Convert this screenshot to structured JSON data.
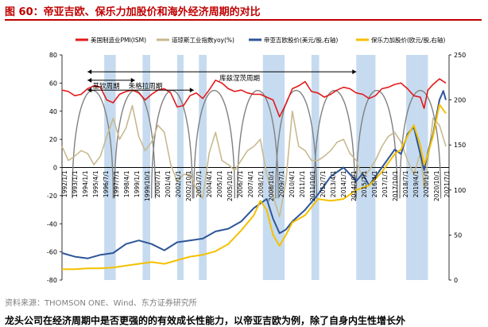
{
  "figure_title": "图 60：帝亚吉欧、保乐力加股价和海外经济周期的对比",
  "source_note": "资料来源：THOMSON ONE、Wind、东方证券研究所",
  "bottom_text": "龙头公司在经济周期中是否更强的的有效成长性能力，以帝亚吉欧为例，除了自身内生性增长外",
  "chart_data": {
    "type": "line",
    "title": "",
    "left_axis": {
      "min": -80,
      "max": 80,
      "step": 20
    },
    "right_axis": {
      "min": 0,
      "max": 250,
      "step": 50
    },
    "x_range": [
      1992.0,
      2022.25
    ],
    "x_tick_labels": [
      "1992/1/1",
      "1993/1/1",
      "1994/1/1",
      "1995/4/1",
      "1996/7/1",
      "1997/7/1",
      "1998/4/1",
      "1999/1/1",
      "1999/10/1",
      "2000/7/1",
      "2001/4/1",
      "2002/1/1",
      "2002/10/1",
      "2003/7/1",
      "2004/4/1",
      "2005/1/1",
      "2005/10/1",
      "2006/7/1",
      "2007/4/1",
      "2008/1/1",
      "2008/10/1",
      "2009/7/1",
      "2010/4/1",
      "2011/1/1",
      "2011/10/1",
      "2012/7/1",
      "2013/4/1",
      "2014/1/1",
      "2014/10/1",
      "2015/7/1",
      "2016/4/1",
      "2017/1/1",
      "2017/10/1",
      "2018/7/1",
      "2019/4/1",
      "2020/1/1",
      "2020/10/1",
      "2021/7/1"
    ],
    "legend": [
      {
        "name": "美国制造业PMI(ISM)",
        "color": "#e31a1c"
      },
      {
        "name": "道琼斯工业指数yoy(%)",
        "color": "#c9b98f"
      },
      {
        "name": "帝亚吉欧股价(美元/股,右轴)",
        "color": "#2e5597"
      },
      {
        "name": "保乐力加股价(欧元/股,右轴)",
        "color": "#f5c000"
      }
    ],
    "cycle_labels": [
      "基钦周期",
      "朱格拉周期",
      "库兹涅茨周期"
    ],
    "highlight_color": "#c6dbef",
    "highlight_periods": [
      [
        1995.3,
        1996.2
      ],
      [
        1998.3,
        1998.9
      ],
      [
        2001.0,
        2001.5
      ],
      [
        2002.7,
        2003.3
      ],
      [
        2007.7,
        2009.4
      ],
      [
        2011.5,
        2012.1
      ],
      [
        2015.0,
        2016.5
      ],
      [
        2018.9,
        2019.8
      ],
      [
        2019.8,
        2020.6
      ]
    ],
    "arch_cycles_peak_x": [
      1994.4,
      1997.7,
      2000.6,
      2003.9,
      2007.3,
      2010.3,
      2013.3,
      2016.6,
      2020.0
    ],
    "series": [
      {
        "name": "美国制造业PMI(ISM)",
        "axis": "left",
        "color": "#e31a1c",
        "x": [
          1992.0,
          1992.5,
          1993.0,
          1993.5,
          1994.0,
          1994.5,
          1995.0,
          1995.5,
          1996.0,
          1996.5,
          1997.0,
          1997.5,
          1998.0,
          1998.5,
          1999.0,
          1999.5,
          2000.0,
          2000.5,
          2001.0,
          2001.5,
          2002.0,
          2002.5,
          2003.0,
          2003.5,
          2004.0,
          2004.5,
          2005.0,
          2005.5,
          2006.0,
          2006.5,
          2007.0,
          2007.5,
          2008.0,
          2008.5,
          2009.0,
          2009.5,
          2010.0,
          2010.5,
          2011.0,
          2011.5,
          2012.0,
          2012.5,
          2013.0,
          2013.5,
          2014.0,
          2014.5,
          2015.0,
          2015.5,
          2016.0,
          2016.5,
          2017.0,
          2017.5,
          2018.0,
          2018.5,
          2019.0,
          2019.5,
          2020.0,
          2020.3,
          2020.6,
          2021.0,
          2021.5,
          2022.0
        ],
        "values": [
          55,
          54,
          51,
          52,
          56,
          58,
          57,
          48,
          46,
          52,
          54,
          55,
          53,
          48,
          52,
          55,
          56,
          53,
          43,
          44,
          51,
          53,
          49,
          55,
          62,
          60,
          56,
          54,
          55,
          53,
          52,
          52,
          50,
          48,
          36,
          45,
          56,
          58,
          61,
          54,
          53,
          50,
          52,
          55,
          57,
          56,
          53,
          52,
          49,
          51,
          56,
          57,
          59,
          60,
          56,
          51,
          50,
          42,
          55,
          59,
          63,
          60
        ]
      },
      {
        "name": "道琼斯工业指数yoy(%)",
        "axis": "left",
        "color": "#c9b98f",
        "x": [
          1992.0,
          1992.5,
          1993.0,
          1993.5,
          1994.0,
          1994.5,
          1995.0,
          1995.5,
          1996.0,
          1996.5,
          1997.0,
          1997.5,
          1998.0,
          1998.5,
          1999.0,
          1999.5,
          2000.0,
          2000.5,
          2001.0,
          2001.5,
          2002.0,
          2002.5,
          2003.0,
          2003.5,
          2004.0,
          2004.5,
          2005.0,
          2005.5,
          2006.0,
          2006.5,
          2007.0,
          2007.5,
          2008.0,
          2008.5,
          2009.0,
          2009.5,
          2010.0,
          2010.5,
          2011.0,
          2011.5,
          2012.0,
          2012.5,
          2013.0,
          2013.5,
          2014.0,
          2014.5,
          2015.0,
          2015.5,
          2016.0,
          2016.5,
          2017.0,
          2017.5,
          2018.0,
          2018.5,
          2019.0,
          2019.5,
          2020.0,
          2020.3,
          2020.6,
          2021.0,
          2021.5,
          2022.0
        ],
        "values": [
          15,
          5,
          8,
          12,
          10,
          2,
          8,
          22,
          35,
          20,
          28,
          44,
          22,
          12,
          18,
          30,
          25,
          2,
          -10,
          -5,
          -5,
          -15,
          -22,
          10,
          25,
          5,
          2,
          -2,
          5,
          12,
          15,
          20,
          -5,
          -20,
          -35,
          -10,
          40,
          15,
          12,
          5,
          5,
          8,
          12,
          18,
          20,
          10,
          5,
          -8,
          -2,
          5,
          15,
          22,
          25,
          18,
          5,
          -5,
          10,
          -15,
          5,
          35,
          30,
          15
        ]
      },
      {
        "name": "帝亚吉欧股价(美元/股,右轴)",
        "axis": "right",
        "color": "#2e5597",
        "x": [
          1992.0,
          1993.0,
          1994.0,
          1995.0,
          1996.0,
          1997.0,
          1998.0,
          1999.0,
          2000.0,
          2001.0,
          2002.0,
          2003.0,
          2004.0,
          2005.0,
          2006.0,
          2007.0,
          2008.0,
          2008.5,
          2009.0,
          2009.5,
          2010.0,
          2011.0,
          2012.0,
          2013.0,
          2014.0,
          2015.0,
          2015.5,
          2016.0,
          2017.0,
          2018.0,
          2018.5,
          2019.0,
          2019.5,
          2020.0,
          2020.3,
          2020.6,
          2021.0,
          2021.5,
          2021.8,
          2022.0
        ],
        "values": [
          30,
          26,
          24,
          28,
          30,
          40,
          44,
          40,
          33,
          42,
          44,
          46,
          54,
          57,
          65,
          80,
          90,
          68,
          52,
          56,
          65,
          78,
          95,
          115,
          125,
          110,
          118,
          105,
          125,
          145,
          140,
          162,
          170,
          140,
          122,
          142,
          162,
          200,
          210,
          200
        ]
      },
      {
        "name": "保乐力加股价(欧元/股,右轴)",
        "axis": "right",
        "color": "#f5c000",
        "x": [
          1992.0,
          1993.0,
          1994.0,
          1995.0,
          1996.0,
          1997.0,
          1998.0,
          1999.0,
          2000.0,
          2001.0,
          2002.0,
          2003.0,
          2004.0,
          2005.0,
          2006.0,
          2007.0,
          2007.5,
          2008.0,
          2008.5,
          2009.0,
          2009.5,
          2010.0,
          2011.0,
          2012.0,
          2013.0,
          2014.0,
          2015.0,
          2016.0,
          2017.0,
          2018.0,
          2018.5,
          2019.0,
          2019.5,
          2020.0,
          2020.3,
          2020.6,
          2021.0,
          2021.5,
          2022.0
        ],
        "values": [
          12,
          12,
          13,
          13,
          14,
          16,
          18,
          20,
          18,
          22,
          26,
          28,
          32,
          40,
          55,
          72,
          88,
          78,
          50,
          38,
          50,
          64,
          72,
          90,
          88,
          90,
          100,
          105,
          120,
          140,
          145,
          160,
          172,
          150,
          128,
          140,
          160,
          195,
          185
        ]
      }
    ]
  }
}
